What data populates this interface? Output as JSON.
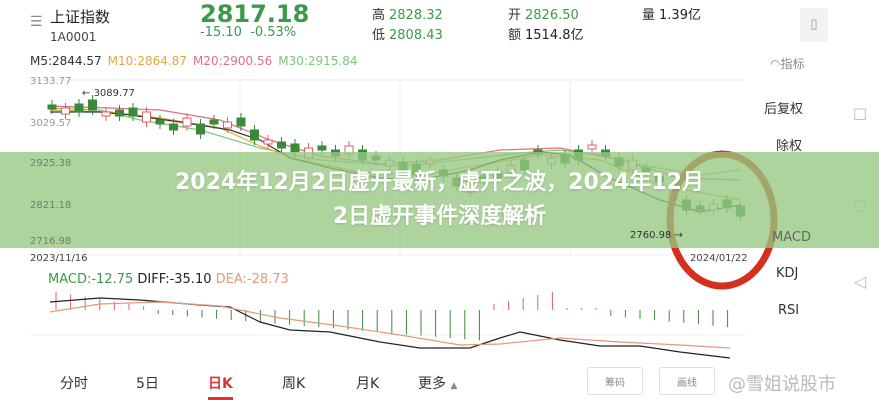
{
  "header": {
    "name": "上证指数",
    "code": "1A0001",
    "price": "2817.18",
    "change": "-15.10",
    "change_pct": "-0.53%",
    "high_label": "高",
    "high": "2828.32",
    "low_label": "低",
    "low": "2808.43",
    "open_label": "开",
    "open": "2826.50",
    "amount_label": "额",
    "amount": "1514.8亿",
    "volume_label": "量",
    "volume": "1.39亿"
  },
  "ma": {
    "m5": "M5:2844.57",
    "m10": "M10:2864.87",
    "m20": "M20:2900.56",
    "m30": "M30:2915.84"
  },
  "colors": {
    "up": "#e06060",
    "down": "#3a8a3a",
    "m10": "#e8a63a",
    "m20": "#e07080",
    "m30": "#7cc87c",
    "accent": "#d33333"
  },
  "chart": {
    "y_ticks": [
      "3133.77",
      "3029.57",
      "2925.38",
      "2821.18",
      "2716.98"
    ],
    "max_marker": "3089.77",
    "min_marker": "2760.98",
    "date_start": "2023/11/16",
    "date_end": "2024/01/22"
  },
  "macd": {
    "macd": "MACD:-12.75",
    "diff": "DIFF:-35.10",
    "dea": "DEA:-28.73"
  },
  "side": {
    "indicator": "指标",
    "restore": "后复权",
    "exright": "除权",
    "macd": "MACD",
    "kdj": "KDJ",
    "rsi": "RSI"
  },
  "tabs": [
    "分时",
    "5日",
    "日K",
    "周K",
    "月K",
    "更多"
  ],
  "buttons": {
    "chips": "筹码",
    "draw": "画线"
  },
  "banner": {
    "title": "2024年12月2日虚开最新，虚开之波，2024年12月2日虚开事件深度解析"
  },
  "watermark": "@雪姐说股市"
}
